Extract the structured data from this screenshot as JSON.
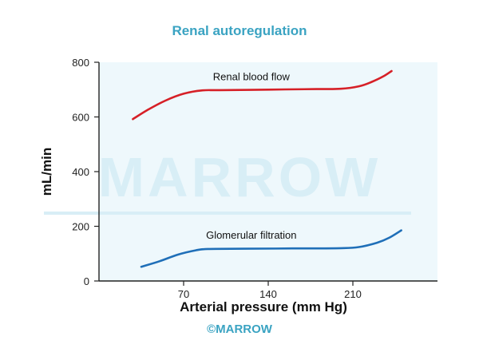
{
  "chart_data": {
    "type": "line",
    "title": "Renal autoregulation",
    "xlabel": "Arterial pressure (mm Hg)",
    "ylabel": "mL/min",
    "xlim": [
      0,
      280
    ],
    "ylim": [
      0,
      800
    ],
    "xticks": [
      70,
      140,
      210
    ],
    "yticks": [
      0,
      200,
      400,
      600,
      800
    ],
    "grid": false,
    "series": [
      {
        "name": "Renal blood flow",
        "color": "#d62027",
        "x": [
          28,
          40,
          55,
          70,
          85,
          100,
          140,
          180,
          200,
          215,
          225,
          235,
          242
        ],
        "y": [
          592,
          625,
          660,
          685,
          697,
          698,
          700,
          702,
          703,
          712,
          727,
          748,
          768
        ]
      },
      {
        "name": "Glomerular filtration",
        "color": "#1f6fb8",
        "x": [
          35,
          50,
          65,
          80,
          90,
          120,
          160,
          200,
          215,
          230,
          240,
          250
        ],
        "y": [
          52,
          72,
          96,
          112,
          117,
          118,
          119,
          120,
          124,
          140,
          158,
          185
        ]
      }
    ]
  },
  "colors": {
    "plot_background": "#eef8fc",
    "title": "#3aa3c2",
    "watermark": "#d8eef6"
  },
  "watermark": "MARROW",
  "footer": "©MARROW"
}
